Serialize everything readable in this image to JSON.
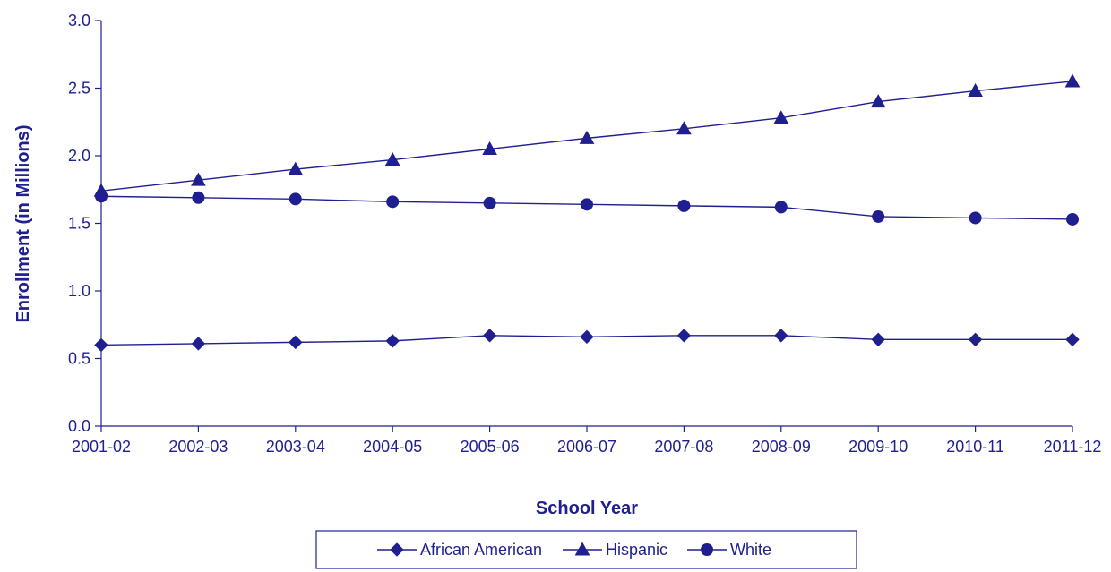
{
  "chart_data": {
    "type": "line",
    "title": "",
    "xlabel": "School Year",
    "ylabel": "Enrollment (in Millions)",
    "categories": [
      "2001-02",
      "2002-03",
      "2003-04",
      "2004-05",
      "2005-06",
      "2006-07",
      "2007-08",
      "2008-09",
      "2009-10",
      "2010-11",
      "2011-12"
    ],
    "ylim": [
      0,
      3.0
    ],
    "yticks": [
      "0.0",
      "0.5",
      "1.0",
      "1.5",
      "2.0",
      "2.5",
      "3.0"
    ],
    "grid": false,
    "legend_position": "bottom",
    "color": "#1f1f8f",
    "series": [
      {
        "name": "African American",
        "marker": "diamond",
        "values": [
          0.6,
          0.61,
          0.62,
          0.63,
          0.67,
          0.66,
          0.67,
          0.67,
          0.64,
          0.64,
          0.64
        ]
      },
      {
        "name": "Hispanic",
        "marker": "triangle",
        "values": [
          1.74,
          1.82,
          1.9,
          1.97,
          2.05,
          2.13,
          2.2,
          2.28,
          2.4,
          2.48,
          2.55
        ]
      },
      {
        "name": "White",
        "marker": "circle",
        "values": [
          1.7,
          1.69,
          1.68,
          1.66,
          1.65,
          1.64,
          1.63,
          1.62,
          1.55,
          1.54,
          1.53
        ]
      }
    ]
  }
}
